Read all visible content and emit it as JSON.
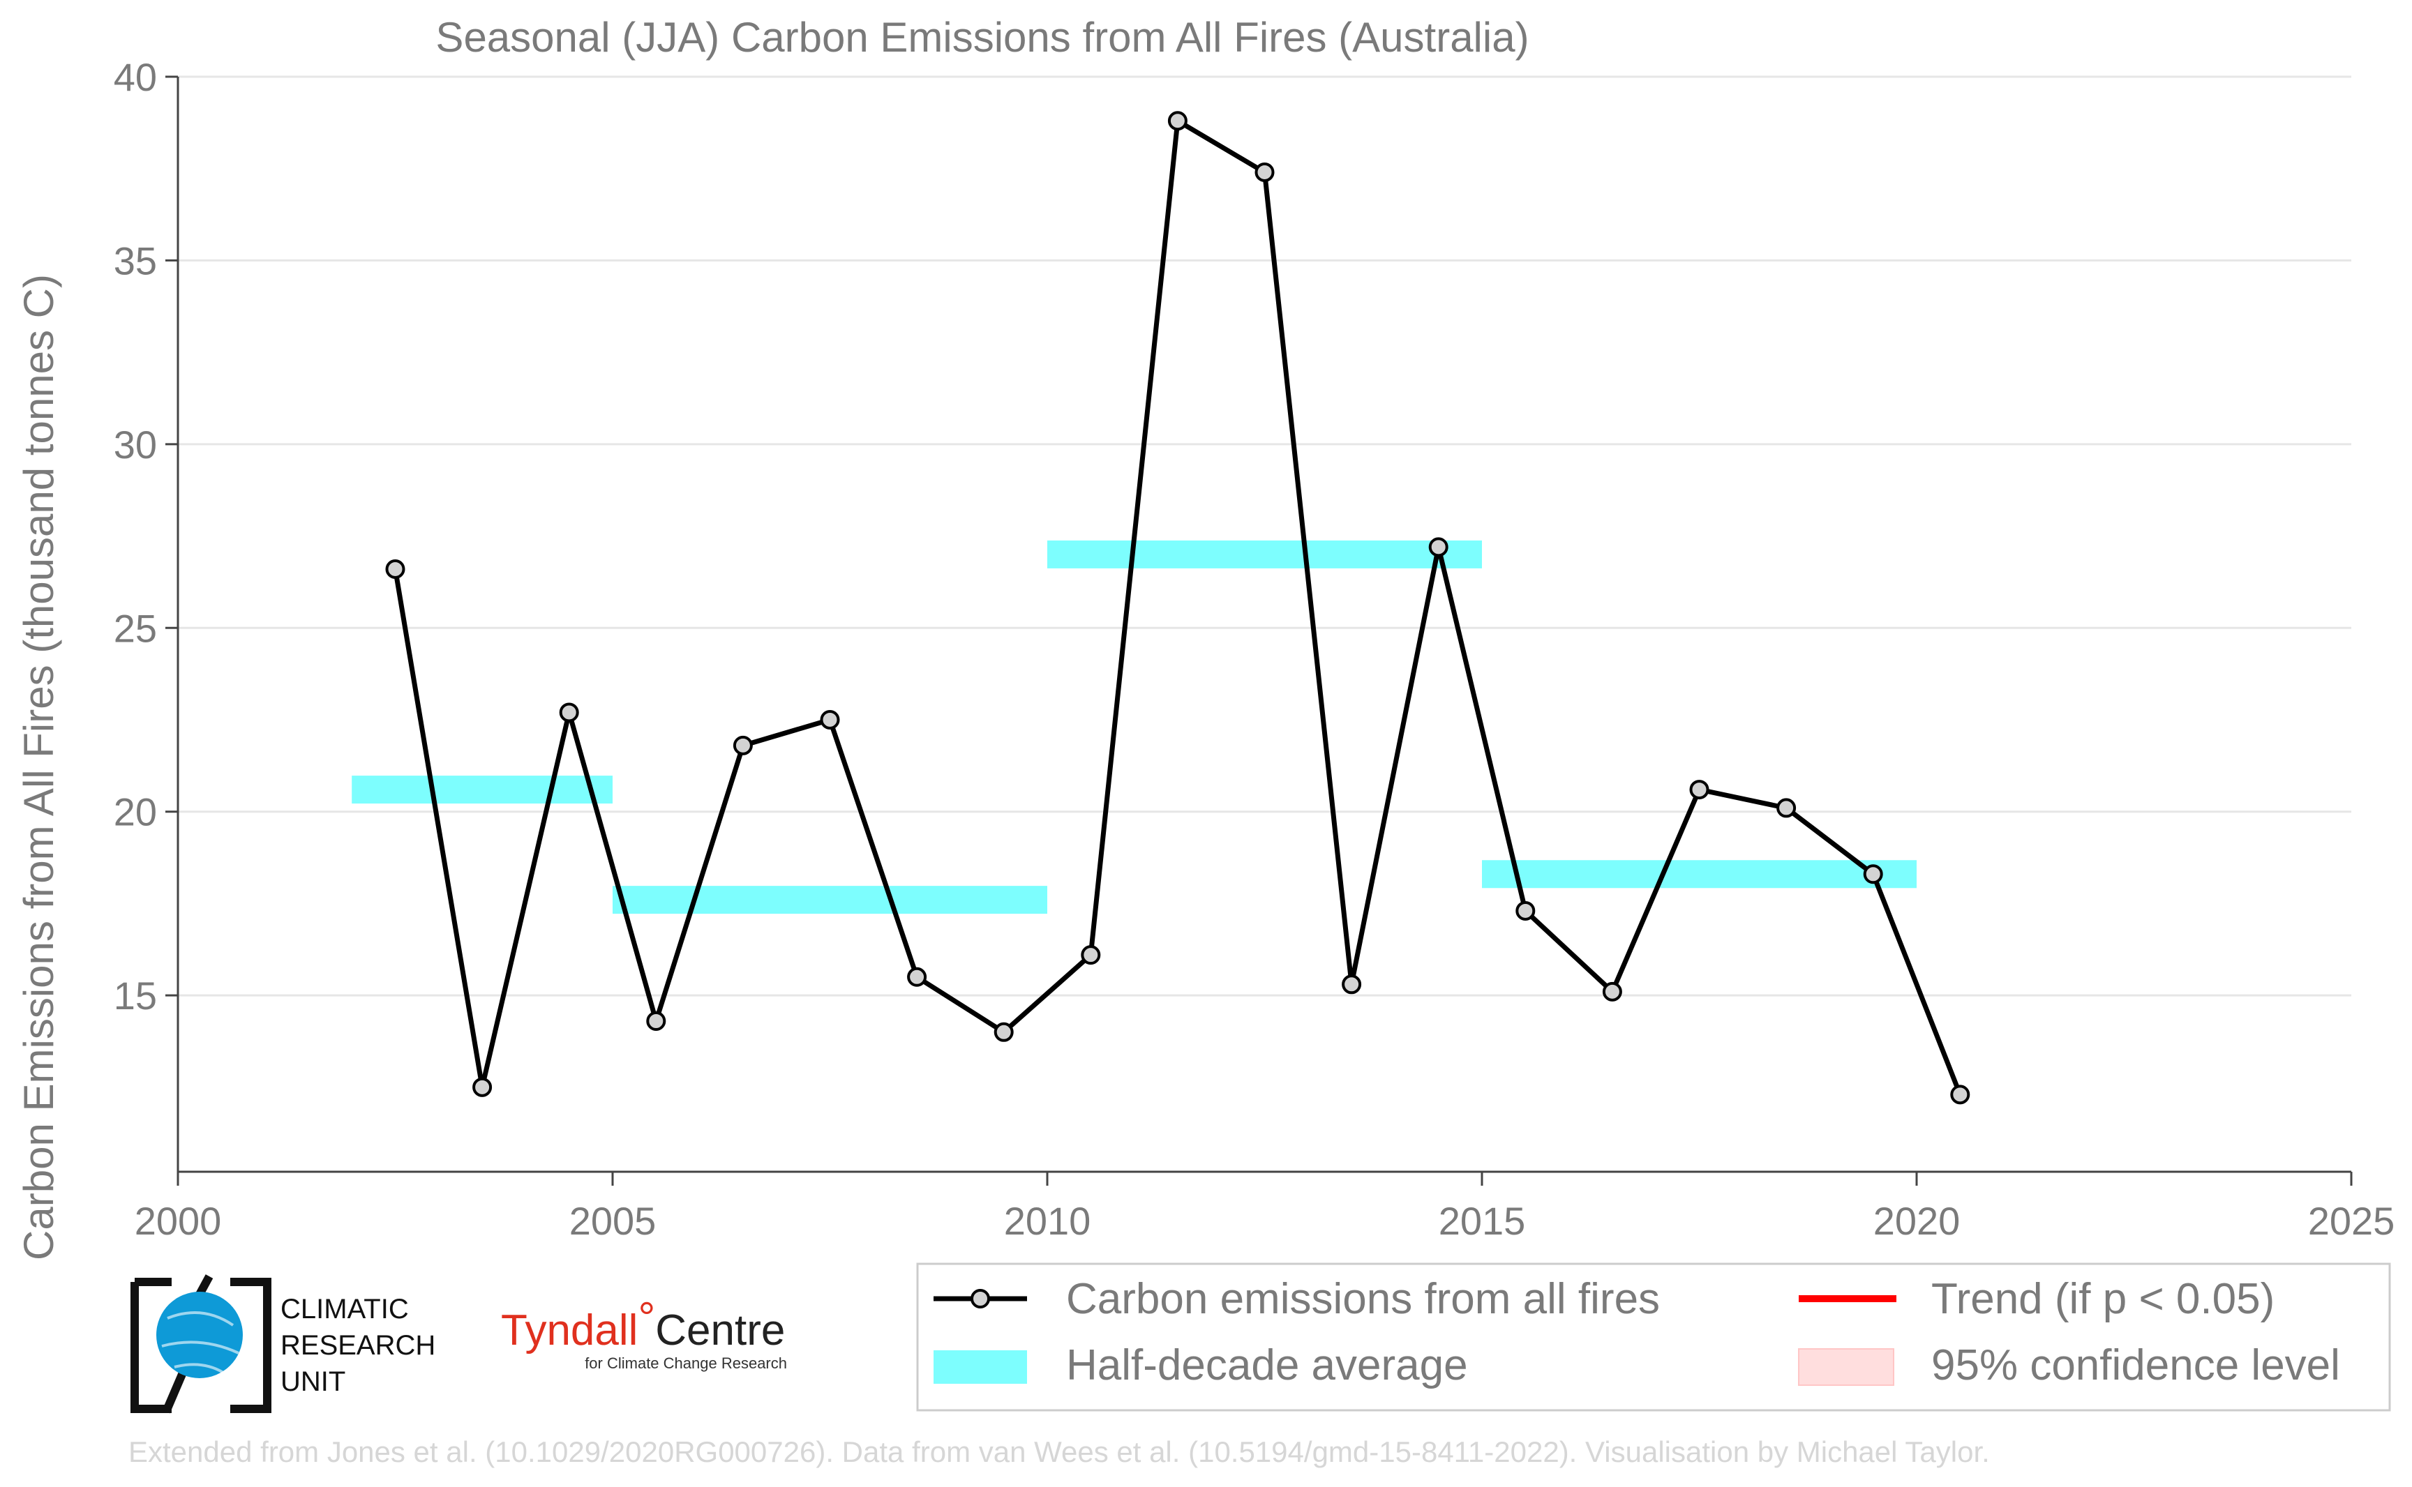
{
  "chart_data": {
    "type": "line",
    "title": "Seasonal (JJA) Carbon Emissions from All Fires (Australia)",
    "ylabel": "Carbon Emissions from All Fires (thousand tonnes C)",
    "xlabel": "",
    "xlim": [
      2000,
      2025
    ],
    "ylim": [
      10.2,
      40
    ],
    "grid": true,
    "legend_position": "bottom-right",
    "x_ticks": [
      "2000",
      "2005",
      "2010",
      "2015",
      "2020",
      "2025"
    ],
    "x_tick_values": [
      2000,
      2005,
      2010,
      2015,
      2020,
      2025
    ],
    "y_ticks": [
      "15",
      "20",
      "25",
      "30",
      "35",
      "40"
    ],
    "y_tick_values": [
      15,
      20,
      25,
      30,
      35,
      40
    ],
    "series": [
      {
        "name": "Carbon emissions from all fires",
        "color": "#000000",
        "marker_fill": "#d3d3d3",
        "x": [
          2002.5,
          2003.5,
          2004.5,
          2005.5,
          2006.5,
          2007.5,
          2008.5,
          2009.5,
          2010.5,
          2011.5,
          2012.5,
          2013.5,
          2014.5,
          2015.5,
          2016.5,
          2017.5,
          2018.5,
          2019.5,
          2020.5
        ],
        "y": [
          26.6,
          12.5,
          22.7,
          14.3,
          21.8,
          22.5,
          15.5,
          14.0,
          16.1,
          38.8,
          37.4,
          15.3,
          27.2,
          17.3,
          15.1,
          20.6,
          20.1,
          18.3,
          12.3
        ]
      }
    ],
    "half_decade_averages": {
      "name": "Half-decade average",
      "color": "#7dfefe",
      "segments": [
        {
          "x0": 2002,
          "x1": 2005,
          "y": 20.6
        },
        {
          "x0": 2005,
          "x1": 2010,
          "y": 17.6
        },
        {
          "x0": 2010,
          "x1": 2015,
          "y": 27.0
        },
        {
          "x0": 2015,
          "x1": 2020,
          "y": 18.3
        }
      ]
    },
    "legend": [
      {
        "label": "Carbon emissions from all fires",
        "kind": "line-marker",
        "color": "#000000"
      },
      {
        "label": "Trend (if p < 0.05)",
        "kind": "line",
        "color": "#ff0000"
      },
      {
        "label": "Half-decade average",
        "kind": "band",
        "color": "#7dfefe"
      },
      {
        "label": "95% confidence level",
        "kind": "patch",
        "color": "#ffdede"
      }
    ]
  },
  "logos": {
    "cru": {
      "lines": [
        "CLIMATIC",
        "RESEARCH",
        "UNIT"
      ],
      "color": "#009ad9"
    },
    "tyndall": {
      "name": "Tyndall",
      "degree": "°",
      "centre": "Centre",
      "subtitle": "for Climate Change Research",
      "color": "#e0301e"
    }
  },
  "footer": "Extended from Jones et al. (10.1029/2020RG000726). Data from van Wees et al. (10.5194/gmd-15-8411-2022). Visualisation by Michael Taylor."
}
